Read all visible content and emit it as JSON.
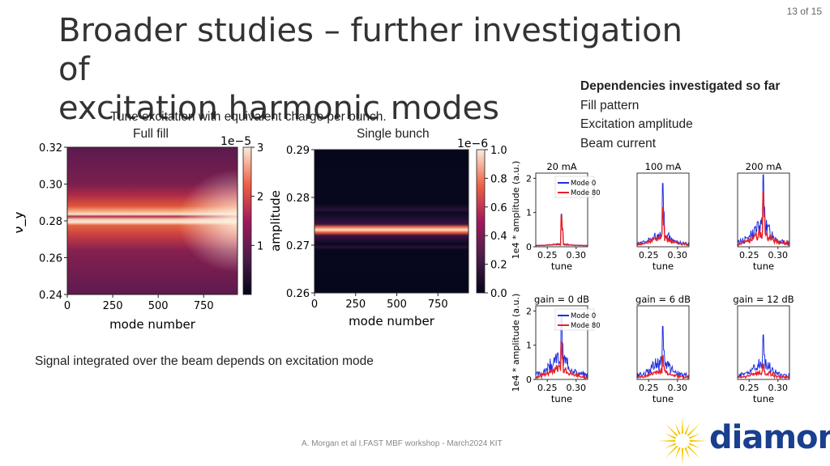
{
  "slide": {
    "page_number": "13 of 15",
    "title_line1": "Broader studies – further investigation of",
    "title_line2": "excitation harmonic modes",
    "dependencies": {
      "heading": "Dependencies investigated so far",
      "items": [
        "Fill pattern",
        "Excitation amplitude",
        "Beam current"
      ]
    },
    "caption": "Tune excitation with equivalent charge per bunch.",
    "label_full_fill": "Full fill",
    "label_single_bunch": "Single bunch",
    "signal_text": "Signal integrated over the beam depends on excitation mode",
    "footer": "A. Morgan et al I.FAST MBF workshop - March2024 KIT",
    "logo_text": "diamond",
    "colors": {
      "brand_blue": "#1a3f8f",
      "brand_yellow": "#f5c400"
    }
  },
  "chart_data": [
    {
      "type": "heatmap",
      "title": "",
      "xlabel": "mode number",
      "ylabel": "ν_y",
      "x_ticks": [
        "0",
        "250",
        "500",
        "750"
      ],
      "y_ticks": [
        "0.32",
        "0.30",
        "0.28",
        "0.26",
        "0.24"
      ],
      "xlim": [
        0,
        936
      ],
      "ylim": [
        0.24,
        0.32
      ],
      "colorbar": {
        "label": "amplitude",
        "scale": "1e−5",
        "ticks": [
          "3",
          "2",
          "1"
        ],
        "range": [
          0,
          3
        ]
      }
    },
    {
      "type": "heatmap",
      "title": "",
      "xlabel": "mode number",
      "ylabel": "",
      "x_ticks": [
        "0",
        "250",
        "500",
        "750"
      ],
      "y_ticks": [
        "0.29",
        "0.28",
        "0.27",
        "0.26"
      ],
      "xlim": [
        0,
        936
      ],
      "ylim": [
        0.26,
        0.29
      ],
      "colorbar": {
        "label": "amplitude",
        "scale": "1e−6",
        "ticks": [
          "1.0",
          "0.8",
          "0.6",
          "0.4",
          "0.2",
          "0.0"
        ],
        "range": [
          0,
          1
        ]
      }
    },
    {
      "type": "line",
      "grid_layout": "2x3",
      "ylabel": "1e4 * amplitude (a.u.)",
      "xlabel": "tune",
      "x_ticks": [
        "0.25",
        "0.30"
      ],
      "y_ticks": [
        "0",
        "1",
        "2"
      ],
      "legend": [
        "Mode 0",
        "Mode 80"
      ],
      "series_colors": [
        "#1f2fe0",
        "#e8202a"
      ],
      "panels": [
        {
          "title": "20 mA",
          "peak": 0.95,
          "peak_red": 0.9,
          "noise": 0.05,
          "noise_red": 0.04
        },
        {
          "title": "100 mA",
          "peak": 1.85,
          "peak_red": 1.15,
          "noise": 0.35,
          "noise_red": 0.25
        },
        {
          "title": "200 mA",
          "peak": 2.1,
          "peak_red": 1.6,
          "noise": 0.6,
          "noise_red": 0.35
        },
        {
          "title": "gain = 0 dB",
          "peak": 1.9,
          "peak_red": 1.1,
          "noise": 0.6,
          "noise_red": 0.3
        },
        {
          "title": "gain = 6 dB",
          "peak": 1.55,
          "peak_red": 0.7,
          "noise": 0.5,
          "noise_red": 0.22
        },
        {
          "title": "gain = 12 dB",
          "peak": 1.3,
          "peak_red": 0.45,
          "noise": 0.45,
          "noise_red": 0.18
        }
      ]
    }
  ]
}
